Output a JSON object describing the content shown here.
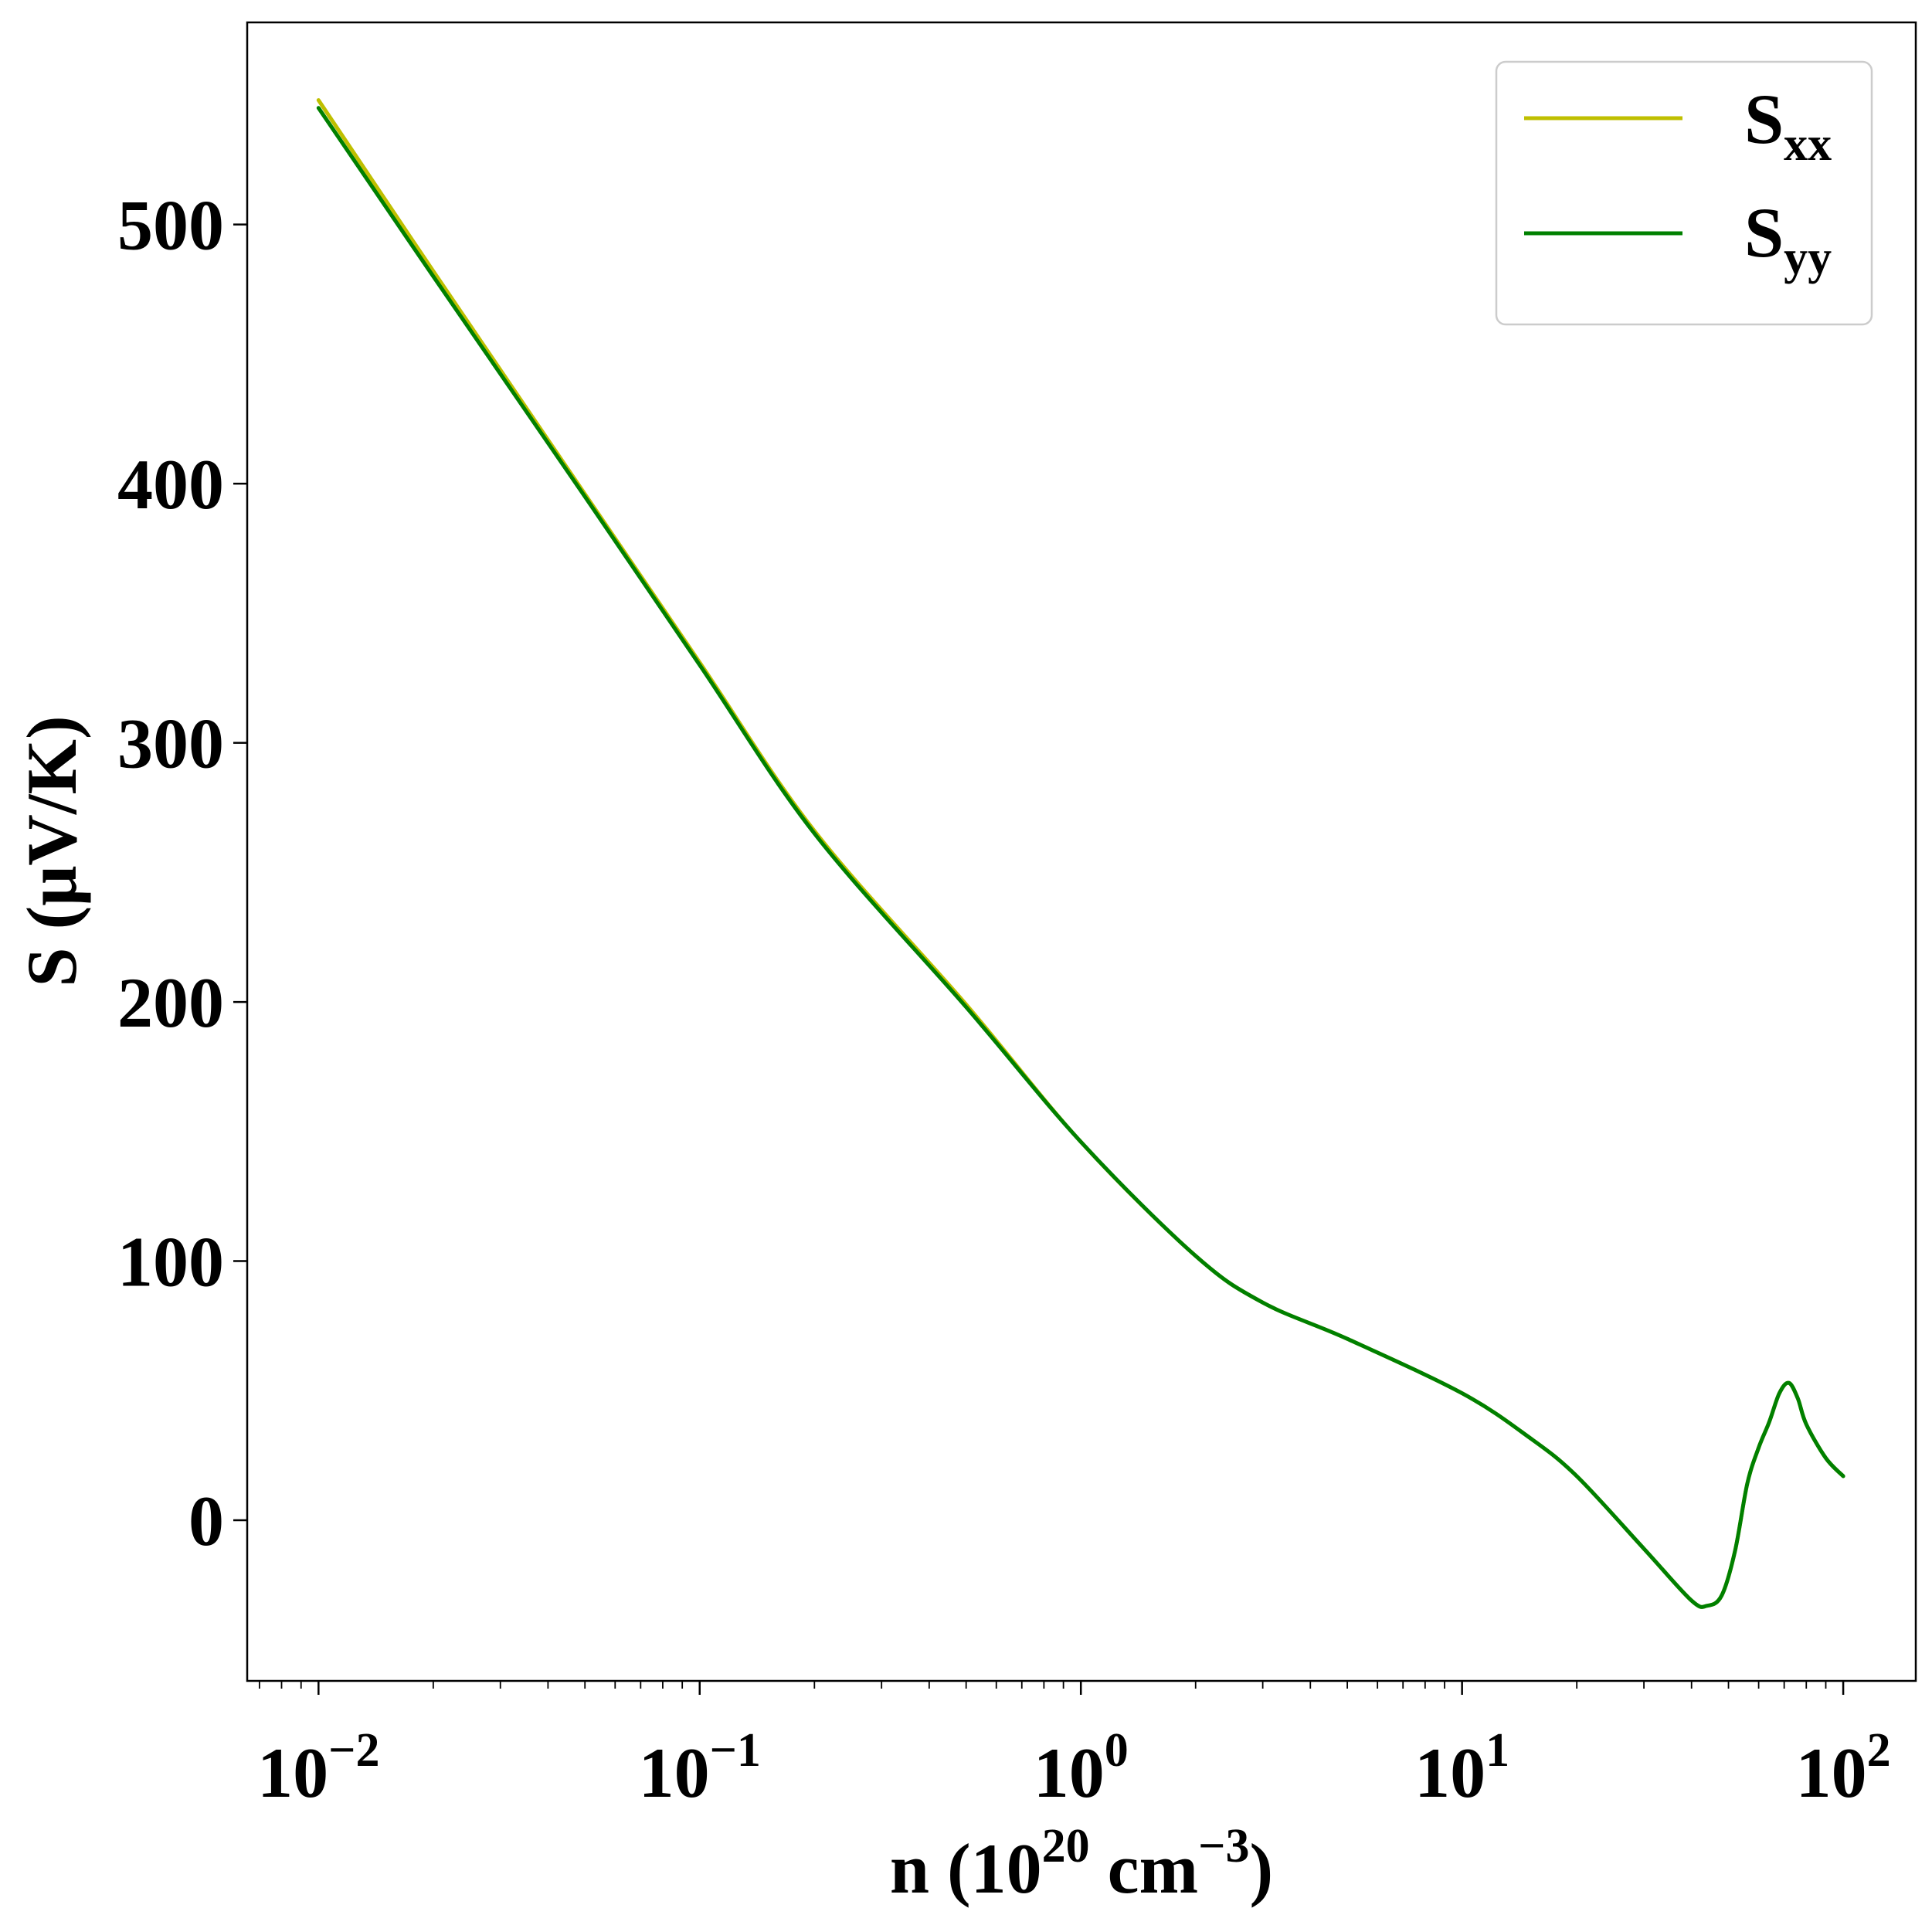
{
  "chart_data": {
    "type": "line",
    "xlabel": "n (10^20 cm^-3)",
    "xlabel_parts": {
      "base": "n (10",
      "exp1": "20",
      "unit": " cm",
      "exp2": "−3",
      "close": ")"
    },
    "ylabel": "S (μV/K)",
    "x_scale": "log",
    "xlim": [
      0.0065,
      155
    ],
    "ylim": [
      -62,
      578
    ],
    "x_ticks": [
      {
        "value": 0.01,
        "base": "10",
        "exp": "−2"
      },
      {
        "value": 0.1,
        "base": "10",
        "exp": "−1"
      },
      {
        "value": 1,
        "base": "10",
        "exp": "0"
      },
      {
        "value": 10,
        "base": "10",
        "exp": "1"
      },
      {
        "value": 100,
        "base": "10",
        "exp": "2"
      }
    ],
    "y_ticks": [
      0,
      100,
      200,
      300,
      400,
      500
    ],
    "y_tick_labels": [
      "0",
      "100",
      "200",
      "300",
      "400",
      "500"
    ],
    "grid": false,
    "legend_position": "top-right",
    "series": [
      {
        "name": "S_xx",
        "legend_main": "S",
        "legend_sub": "xx",
        "color": "#bfbf00",
        "x": [
          0.01,
          0.02,
          0.05,
          0.1,
          0.2,
          0.5,
          1,
          2,
          3,
          5,
          10,
          15,
          20,
          30,
          40,
          44,
          48,
          52,
          56,
          60,
          64,
          68,
          72,
          76,
          80,
          90,
          100
        ],
        "y": [
          548,
          482,
          396,
          331,
          266,
          199,
          146,
          102,
          84,
          70,
          49,
          32,
          17,
          -11,
          -31,
          -33,
          -29,
          -12,
          14,
          28,
          38,
          49,
          53,
          47,
          37,
          24,
          17
        ]
      },
      {
        "name": "S_yy",
        "legend_main": "S",
        "legend_sub": "yy",
        "color": "#008000",
        "x": [
          0.01,
          0.02,
          0.05,
          0.1,
          0.2,
          0.5,
          1,
          2,
          3,
          5,
          10,
          15,
          20,
          30,
          40,
          44,
          48,
          52,
          56,
          60,
          64,
          68,
          72,
          76,
          80,
          90,
          100
        ],
        "y": [
          545,
          480,
          395,
          330,
          265,
          198,
          146,
          102,
          84,
          70,
          49,
          32,
          17,
          -11,
          -31,
          -33,
          -29,
          -12,
          14,
          28,
          38,
          49,
          53,
          47,
          37,
          24,
          17
        ]
      }
    ]
  }
}
